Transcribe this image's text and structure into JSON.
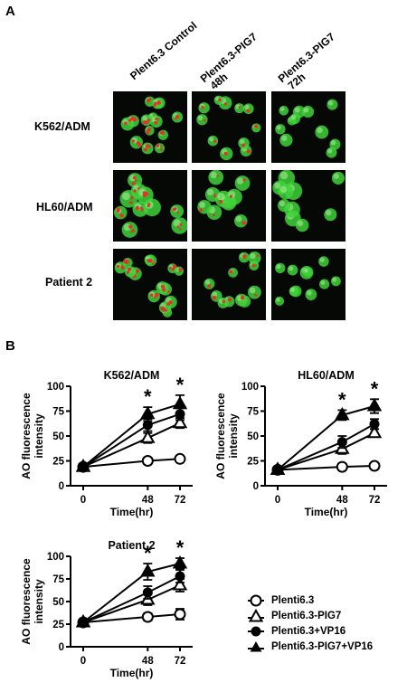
{
  "panel_a": {
    "letter": "A",
    "columns": [
      "Plent6.3 Control",
      "Plent6.3-PIG7\n 48h",
      "Plent6.3-PIG7\n 72h"
    ],
    "rows": [
      "K562/ADM",
      "HL60/ADM",
      "Patient 2"
    ]
  },
  "panel_b": {
    "letter": "B"
  },
  "legend": [
    {
      "label": "Plenti6.3",
      "marker": "circle-open"
    },
    {
      "label": "Plenti6.3-PIG7",
      "marker": "triangle-open"
    },
    {
      "label": "Plenti6.3+VP16",
      "marker": "circle-filled"
    },
    {
      "label": "Plenti6.3-PIG7+VP16",
      "marker": "triangle-filled"
    }
  ],
  "colors": {
    "green_stain": "#3fd23a",
    "red_stain": "#e0332a",
    "background": "#060806"
  },
  "chart_data": [
    {
      "type": "line",
      "title": "K562/ADM",
      "xlabel": "Time(hr)",
      "ylabel": "AO fluorescence intensity",
      "x": [
        0,
        48,
        72
      ],
      "xticks": [
        "0",
        "48",
        "72"
      ],
      "yticks": [
        "0",
        "25",
        "50",
        "75",
        "100"
      ],
      "ylim": [
        0,
        100
      ],
      "significance": [
        {
          "x": 48,
          "label": "*"
        },
        {
          "x": 72,
          "label": "*"
        }
      ],
      "series": [
        {
          "name": "Plenti6.3",
          "values": [
            19,
            25,
            27
          ],
          "errors": [
            2,
            3,
            3
          ]
        },
        {
          "name": "Plenti6.3-PIG7",
          "values": [
            19,
            48,
            63
          ],
          "errors": [
            2,
            5,
            5
          ]
        },
        {
          "name": "Plenti6.3+VP16",
          "values": [
            19,
            61,
            72
          ],
          "errors": [
            2,
            6,
            6
          ]
        },
        {
          "name": "Plenti6.3-PIG7+VP16",
          "values": [
            19,
            72,
            82
          ],
          "errors": [
            2,
            7,
            9
          ]
        }
      ]
    },
    {
      "type": "line",
      "title": "HL60/ADM",
      "xlabel": "Time(hr)",
      "ylabel": "AO fluorescence intensity",
      "x": [
        0,
        48,
        72
      ],
      "xticks": [
        "0",
        "48",
        "72"
      ],
      "yticks": [
        "0",
        "25",
        "50",
        "75",
        "100"
      ],
      "ylim": [
        0,
        100
      ],
      "significance": [
        {
          "x": 48,
          "label": "*"
        },
        {
          "x": 72,
          "label": "*"
        }
      ],
      "series": [
        {
          "name": "Plenti6.3",
          "values": [
            16,
            19,
            20
          ],
          "errors": [
            2,
            3,
            3
          ]
        },
        {
          "name": "Plenti6.3-PIG7",
          "values": [
            16,
            37,
            53
          ],
          "errors": [
            2,
            5,
            4
          ]
        },
        {
          "name": "Plenti6.3+VP16",
          "values": [
            16,
            44,
            62
          ],
          "errors": [
            2,
            6,
            5
          ]
        },
        {
          "name": "Plenti6.3-PIG7+VP16",
          "values": [
            16,
            71,
            80
          ],
          "errors": [
            2,
            5,
            7
          ]
        }
      ]
    },
    {
      "type": "line",
      "title": "Patient 2",
      "xlabel": "Time(hr)",
      "ylabel": "AO fluorescence intensity",
      "x": [
        0,
        48,
        72
      ],
      "xticks": [
        "0",
        "48",
        "72"
      ],
      "yticks": [
        "0",
        "25",
        "50",
        "75",
        "100"
      ],
      "ylim": [
        0,
        100
      ],
      "significance": [
        {
          "x": 48,
          "label": "*"
        },
        {
          "x": 72,
          "label": "*"
        }
      ],
      "series": [
        {
          "name": "Plenti6.3",
          "values": [
            27,
            33,
            36
          ],
          "errors": [
            2,
            4,
            6
          ]
        },
        {
          "name": "Plenti6.3-PIG7",
          "values": [
            27,
            52,
            68
          ],
          "errors": [
            2,
            6,
            7
          ]
        },
        {
          "name": "Plenti6.3+VP16",
          "values": [
            27,
            60,
            78
          ],
          "errors": [
            2,
            7,
            7
          ]
        },
        {
          "name": "Plenti6.3-PIG7+VP16",
          "values": [
            27,
            83,
            92
          ],
          "errors": [
            2,
            9,
            6
          ]
        }
      ]
    }
  ]
}
